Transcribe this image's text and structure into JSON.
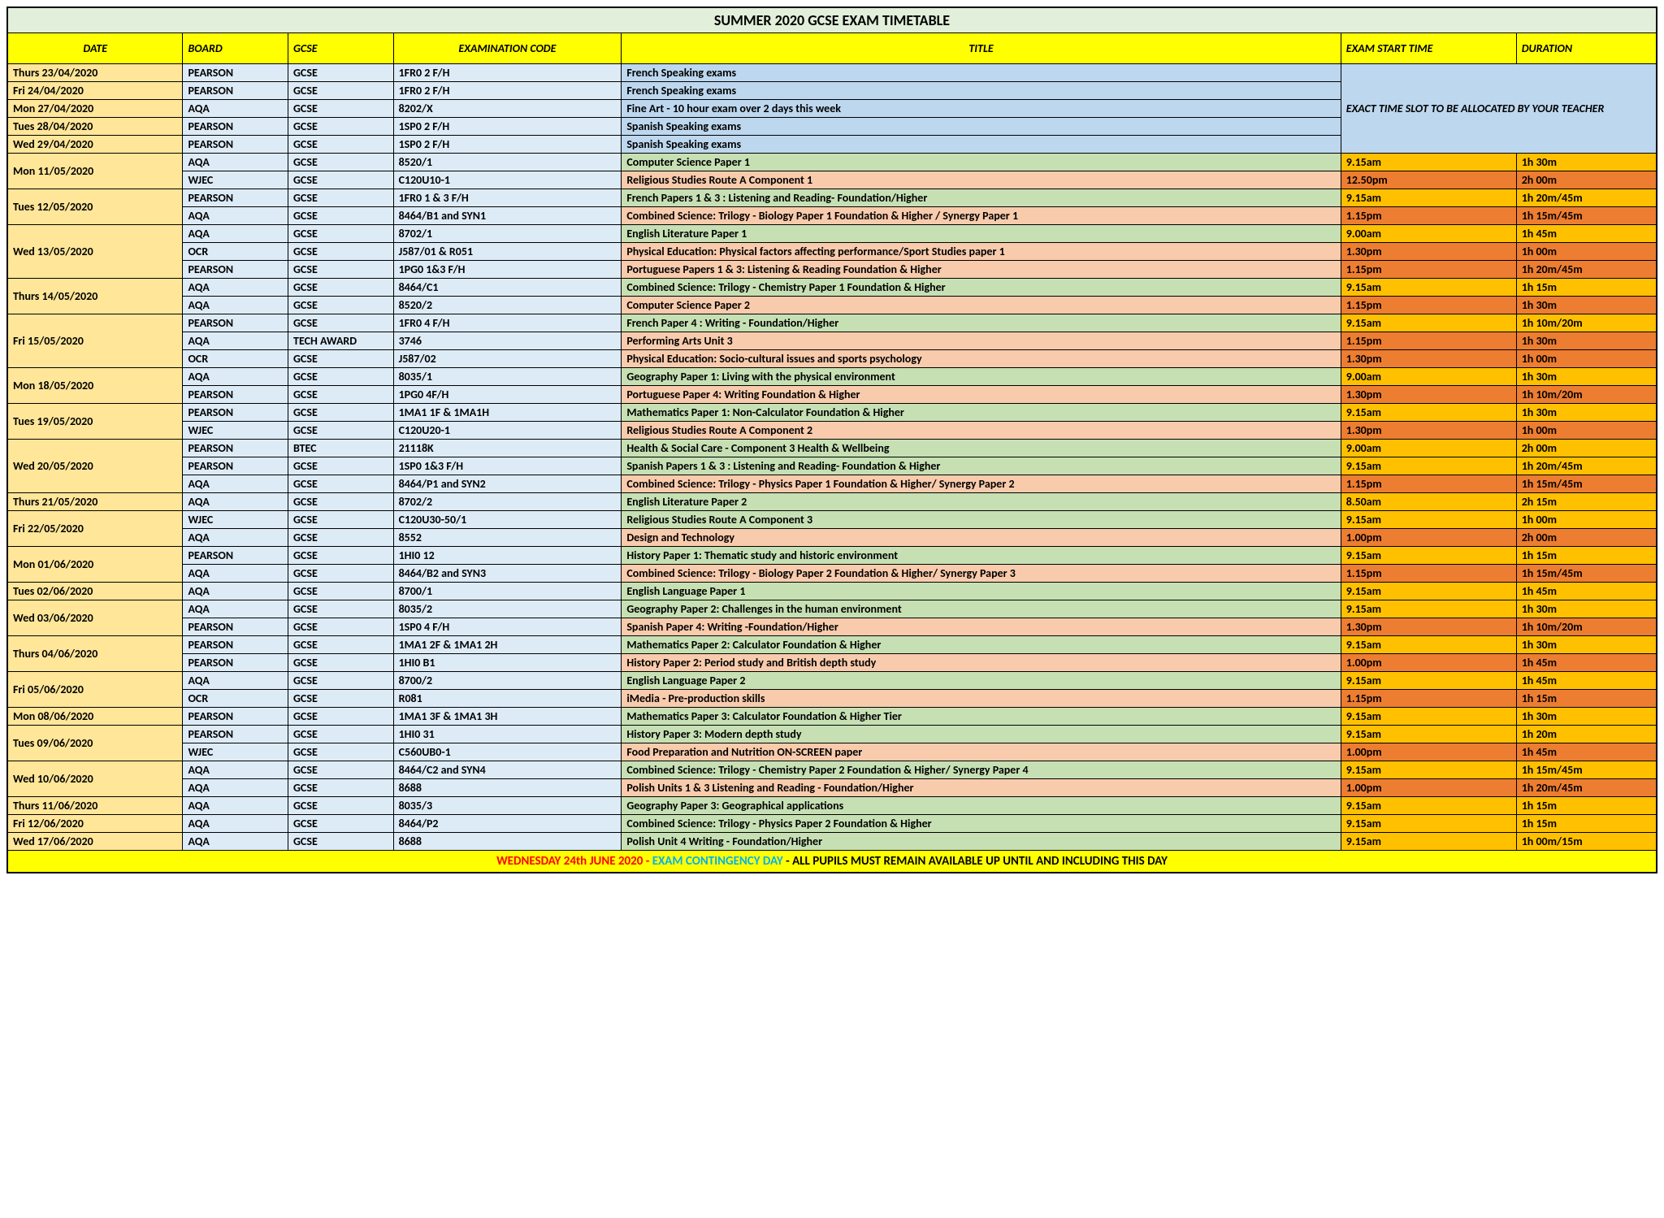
{
  "title": "SUMMER 2020 GCSE EXAM TIMETABLE",
  "columns": {
    "date": "DATE",
    "board": "BOARD",
    "gcse": "GCSE",
    "code": "EXAMINATION CODE",
    "title": "TITLE",
    "start": "EXAM START TIME",
    "duration": "DURATION"
  },
  "teacher_note": "EXACT TIME SLOT TO BE ALLOCATED BY YOUR TEACHER",
  "footer": {
    "p1": "WEDNESDAY 24th  JUNE 2020 -  ",
    "p2": "EXAM CONTINGENCY DAY ",
    "p3": "- ALL PUPILS MUST REMAIN AVAILABLE UP UNTIL AND INCLUDING THIS DAY"
  },
  "colors": {
    "title_bg": "#e2efda",
    "header_bg": "#ffff00",
    "date_bg": "#ffe699",
    "board_bg": "#ddebf7",
    "green_bg": "#c6e0b4",
    "salmon_bg": "#f8cbad",
    "blue_bg": "#bdd7ee",
    "am_bg": "#ffc000",
    "pm_bg": "#ed7d31",
    "footer_bg": "#ffff00",
    "footer_red": "#ff0000",
    "footer_cyan": "#00b0f0"
  },
  "session_colors": {
    "am": "am",
    "pm": "pm"
  },
  "title_colors": {
    "green": "green",
    "salmon": "salmon",
    "blue": "blue"
  },
  "dateGroups": [
    {
      "date": "Thurs 23/04/2020",
      "exams": [
        {
          "board": "PEARSON",
          "gcse": "GCSE",
          "code": "1FR0 2 F/H",
          "title": "French Speaking exams",
          "tcol": "blue",
          "teacher": true
        }
      ]
    },
    {
      "date": "Fri 24/04/2020",
      "exams": [
        {
          "board": "PEARSON",
          "gcse": "GCSE",
          "code": "1FR0 2 F/H",
          "title": "French Speaking exams",
          "tcol": "blue",
          "teacher": true
        }
      ]
    },
    {
      "date": "Mon 27/04/2020",
      "exams": [
        {
          "board": "AQA",
          "gcse": "GCSE",
          "code": "8202/X",
          "title": "Fine Art - 10 hour exam over 2 days this week",
          "tcol": "blue",
          "teacher": true
        }
      ]
    },
    {
      "date": "Tues 28/04/2020",
      "exams": [
        {
          "board": "PEARSON",
          "gcse": "GCSE",
          "code": "1SP0 2 F/H",
          "title": "Spanish Speaking exams",
          "tcol": "blue",
          "teacher": true
        }
      ]
    },
    {
      "date": "Wed 29/04/2020",
      "exams": [
        {
          "board": "PEARSON",
          "gcse": "GCSE",
          "code": "1SP0 2 F/H",
          "title": "Spanish Speaking exams",
          "tcol": "blue",
          "teacher": true
        }
      ]
    },
    {
      "date": "Mon 11/05/2020",
      "exams": [
        {
          "board": "AQA",
          "gcse": "GCSE",
          "code": "8520/1",
          "title": "Computer Science Paper 1",
          "tcol": "green",
          "start": "9.15am",
          "dur": "1h 30m",
          "sess": "am"
        },
        {
          "board": "WJEC",
          "gcse": "GCSE",
          "code": "C120U10-1",
          "title": "Religious Studies Route A Component 1",
          "tcol": "salmon",
          "start": "12.50pm",
          "dur": "2h 00m",
          "sess": "pm"
        }
      ]
    },
    {
      "date": "Tues 12/05/2020",
      "exams": [
        {
          "board": "PEARSON",
          "gcse": "GCSE",
          "code": "1FR0 1 & 3 F/H",
          "title": "French Papers 1 & 3 : Listening and Reading- Foundation/Higher",
          "tcol": "green",
          "start": "9.15am",
          "dur": "1h 20m/45m",
          "sess": "am"
        },
        {
          "board": "AQA",
          "gcse": "GCSE",
          "code": "8464/B1 and SYN1",
          "title": "Combined Science: Trilogy - Biology Paper 1 Foundation & Higher / Synergy Paper 1",
          "tcol": "salmon",
          "start": "1.15pm",
          "dur": "1h 15m/45m",
          "sess": "pm"
        }
      ]
    },
    {
      "date": "Wed 13/05/2020",
      "exams": [
        {
          "board": "AQA",
          "gcse": "GCSE",
          "code": "8702/1",
          "title": "English Literature Paper 1",
          "tcol": "green",
          "start": "9.00am",
          "dur": "1h 45m",
          "sess": "am"
        },
        {
          "board": "OCR",
          "gcse": "GCSE",
          "code": "J587/01 & R051",
          "title": "Physical Education: Physical factors affecting performance/Sport Studies paper 1",
          "tcol": "salmon",
          "start": "1.30pm",
          "dur": "1h 00m",
          "sess": "pm"
        },
        {
          "board": "PEARSON",
          "gcse": "GCSE",
          "code": "1PG0 1&3 F/H",
          "title": "Portuguese Papers 1 & 3: Listening & Reading Foundation & Higher",
          "tcol": "salmon",
          "start": "1.15pm",
          "dur": "1h 20m/45m",
          "sess": "pm"
        }
      ]
    },
    {
      "date": "Thurs 14/05/2020",
      "exams": [
        {
          "board": "AQA",
          "gcse": "GCSE",
          "code": "8464/C1",
          "title": "Combined Science: Trilogy - Chemistry Paper 1 Foundation & Higher",
          "tcol": "green",
          "start": "9.15am",
          "dur": "1h 15m",
          "sess": "am"
        },
        {
          "board": "AQA",
          "gcse": "GCSE",
          "code": "8520/2",
          "title": "Computer Science Paper 2",
          "tcol": "salmon",
          "start": "1.15pm",
          "dur": "1h 30m",
          "sess": "pm"
        }
      ]
    },
    {
      "date": "Fri 15/05/2020",
      "exams": [
        {
          "board": "PEARSON",
          "gcse": "GCSE",
          "code": "1FR0 4 F/H",
          "title": "French Paper 4 : Writing - Foundation/Higher",
          "tcol": "green",
          "start": "9.15am",
          "dur": "1h 10m/20m",
          "sess": "am"
        },
        {
          "board": "AQA",
          "gcse": "TECH AWARD",
          "code": "3746",
          "title": "Performing Arts Unit 3",
          "tcol": "salmon",
          "start": "1.15pm",
          "dur": "1h 30m",
          "sess": "pm"
        },
        {
          "board": "OCR",
          "gcse": "GCSE",
          "code": "J587/02",
          "title": "Physical Education: Socio-cultural issues and sports psychology",
          "tcol": "salmon",
          "start": "1.30pm",
          "dur": "1h 00m",
          "sess": "pm"
        }
      ]
    },
    {
      "date": "Mon 18/05/2020",
      "exams": [
        {
          "board": "AQA",
          "gcse": "GCSE",
          "code": "8035/1",
          "title": "Geography Paper 1: Living with the physical environment",
          "tcol": "green",
          "start": "9.00am",
          "dur": "1h 30m",
          "sess": "am"
        },
        {
          "board": "PEARSON",
          "gcse": "GCSE",
          "code": "1PG0 4F/H",
          "title": "Portuguese  Paper 4: Writing Foundation & Higher",
          "tcol": "salmon",
          "start": "1.30pm",
          "dur": "1h 10m/20m",
          "sess": "pm"
        }
      ]
    },
    {
      "date": "Tues 19/05/2020",
      "exams": [
        {
          "board": "PEARSON",
          "gcse": "GCSE",
          "code": "1MA1 1F & 1MA1H",
          "title": "Mathematics Paper 1: Non-Calculator Foundation & Higher",
          "tcol": "green",
          "start": "9.15am",
          "dur": "1h 30m",
          "sess": "am"
        },
        {
          "board": "WJEC",
          "gcse": "GCSE",
          "code": "C120U20-1",
          "title": "Religious Studies Route A Component 2",
          "tcol": "salmon",
          "start": "1.30pm",
          "dur": "1h 00m",
          "sess": "pm"
        }
      ]
    },
    {
      "date": "Wed 20/05/2020",
      "exams": [
        {
          "board": "PEARSON",
          "gcse": "BTEC",
          "code": "21118K",
          "title": "Health & Social Care - Component 3 Health & Wellbeing",
          "tcol": "green",
          "start": "9.00am",
          "dur": "2h 00m",
          "sess": "am"
        },
        {
          "board": "PEARSON",
          "gcse": "GCSE",
          "code": "1SP0 1&3 F/H",
          "title": "Spanish Papers 1 & 3 : Listening and Reading- Foundation & Higher",
          "tcol": "green",
          "start": "9.15am",
          "dur": "1h 20m/45m",
          "sess": "am"
        },
        {
          "board": "AQA",
          "gcse": "GCSE",
          "code": "8464/P1 and SYN2",
          "title": "Combined Science: Trilogy - Physics Paper 1 Foundation & Higher/ Synergy Paper 2",
          "tcol": "salmon",
          "start": "1.15pm",
          "dur": "1h 15m/45m",
          "sess": "pm"
        }
      ]
    },
    {
      "date": "Thurs 21/05/2020",
      "exams": [
        {
          "board": "AQA",
          "gcse": "GCSE",
          "code": "8702/2",
          "title": "English Literature Paper 2",
          "tcol": "green",
          "start": "8.50am",
          "dur": "2h 15m",
          "sess": "am"
        }
      ]
    },
    {
      "date": "Fri 22/05/2020",
      "exams": [
        {
          "board": "WJEC",
          "gcse": "GCSE",
          "code": "C120U30-50/1",
          "title": "Religious Studies Route A Component 3",
          "tcol": "green",
          "start": "9.15am",
          "dur": "1h 00m",
          "sess": "am"
        },
        {
          "board": "AQA",
          "gcse": "GCSE",
          "code": "8552",
          "title": "Design and Technology",
          "tcol": "salmon",
          "start": "1.00pm",
          "dur": "2h 00m",
          "sess": "pm"
        }
      ]
    },
    {
      "date": "Mon 01/06/2020",
      "exams": [
        {
          "board": "PEARSON",
          "gcse": "GCSE",
          "code": "1HI0 12",
          "title": "History Paper 1: Thematic study and historic environment",
          "tcol": "green",
          "start": "9.15am",
          "dur": "1h 15m",
          "sess": "am"
        },
        {
          "board": "AQA",
          "gcse": "GCSE",
          "code": "8464/B2 and SYN3",
          "title": "Combined Science: Trilogy - Biology Paper 2 Foundation & Higher/ Synergy Paper 3",
          "tcol": "salmon",
          "start": "1.15pm",
          "dur": "1h 15m/45m",
          "sess": "pm"
        }
      ]
    },
    {
      "date": "Tues 02/06/2020",
      "exams": [
        {
          "board": "AQA",
          "gcse": "GCSE",
          "code": "8700/1",
          "title": "English Language Paper 1",
          "tcol": "green",
          "start": "9.15am",
          "dur": "1h 45m",
          "sess": "am"
        }
      ]
    },
    {
      "date": "Wed 03/06/2020",
      "exams": [
        {
          "board": "AQA",
          "gcse": "GCSE",
          "code": "8035/2",
          "title": "Geography Paper 2: Challenges in the human environment",
          "tcol": "green",
          "start": "9.15am",
          "dur": "1h 30m",
          "sess": "am"
        },
        {
          "board": "PEARSON",
          "gcse": "GCSE",
          "code": "1SP0 4 F/H",
          "title": "Spanish Paper 4: Writing -Foundation/Higher",
          "tcol": "salmon",
          "start": "1.30pm",
          "dur": "1h 10m/20m",
          "sess": "pm"
        }
      ]
    },
    {
      "date": "Thurs 04/06/2020",
      "exams": [
        {
          "board": "PEARSON",
          "gcse": "GCSE",
          "code": "1MA1 2F & 1MA1 2H",
          "title": "Mathematics Paper 2: Calculator Foundation & Higher",
          "tcol": "green",
          "start": "9.15am",
          "dur": "1h 30m",
          "sess": "am"
        },
        {
          "board": "PEARSON",
          "gcse": "GCSE",
          "code": "1HI0 B1",
          "title": "History Paper 2: Period study and British depth study",
          "tcol": "salmon",
          "start": "1.00pm",
          "dur": "1h 45m",
          "sess": "pm"
        }
      ]
    },
    {
      "date": "Fri 05/06/2020",
      "exams": [
        {
          "board": "AQA",
          "gcse": "GCSE",
          "code": "8700/2",
          "title": "English Language Paper 2",
          "tcol": "green",
          "start": "9.15am",
          "dur": "1h 45m",
          "sess": "am"
        },
        {
          "board": "OCR",
          "gcse": "GCSE",
          "code": "R081",
          "title": "iMedia - Pre-production skills",
          "tcol": "salmon",
          "start": "1.15pm",
          "dur": "1h 15m",
          "sess": "pm"
        }
      ]
    },
    {
      "date": "Mon 08/06/2020",
      "exams": [
        {
          "board": "PEARSON",
          "gcse": "GCSE",
          "code": "1MA1 3F & 1MA1 3H",
          "title": "Mathematics Paper 3: Calculator Foundation & Higher Tier",
          "tcol": "green",
          "start": "9.15am",
          "dur": "1h 30m",
          "sess": "am"
        }
      ]
    },
    {
      "date": "Tues 09/06/2020",
      "exams": [
        {
          "board": "PEARSON",
          "gcse": "GCSE",
          "code": "1HI0 31",
          "title": "History Paper 3: Modern depth study",
          "tcol": "green",
          "start": "9.15am",
          "dur": "1h 20m",
          "sess": "am"
        },
        {
          "board": "WJEC",
          "gcse": "GCSE",
          "code": "C560UB0-1",
          "title": "Food Preparation and Nutrition ON-SCREEN paper",
          "tcol": "salmon",
          "start": "1.00pm",
          "dur": "1h 45m",
          "sess": "pm"
        }
      ]
    },
    {
      "date": "Wed 10/06/2020",
      "exams": [
        {
          "board": "AQA",
          "gcse": "GCSE",
          "code": "8464/C2 and SYN4",
          "title": "Combined Science: Trilogy - Chemistry Paper 2 Foundation & Higher/ Synergy Paper 4",
          "tcol": "green",
          "start": "9.15am",
          "dur": "1h 15m/45m",
          "sess": "am"
        },
        {
          "board": "AQA",
          "gcse": "GCSE",
          "code": "8688",
          "title": "Polish Units 1  & 3 Listening and Reading - Foundation/Higher",
          "tcol": "salmon",
          "start": "1.00pm",
          "dur": "1h 20m/45m",
          "sess": "pm"
        }
      ]
    },
    {
      "date": "Thurs 11/06/2020",
      "exams": [
        {
          "board": "AQA",
          "gcse": "GCSE",
          "code": "8035/3",
          "title": "Geography Paper 3: Geographical applications",
          "tcol": "green",
          "start": "9.15am",
          "dur": "1h 15m",
          "sess": "am"
        }
      ]
    },
    {
      "date": "Fri 12/06/2020",
      "exams": [
        {
          "board": "AQA",
          "gcse": "GCSE",
          "code": "8464/P2",
          "title": "Combined Science: Trilogy - Physics Paper 2 Foundation & Higher",
          "tcol": "green",
          "start": "9.15am",
          "dur": "1h 15m",
          "sess": "am"
        }
      ]
    },
    {
      "date": "Wed 17/06/2020",
      "exams": [
        {
          "board": "AQA",
          "gcse": "GCSE",
          "code": "8688",
          "title": "Polish Unit 4  Writing - Foundation/Higher",
          "tcol": "green",
          "start": "9.15am",
          "dur": "1h 00m/15m",
          "sess": "am"
        }
      ]
    }
  ]
}
